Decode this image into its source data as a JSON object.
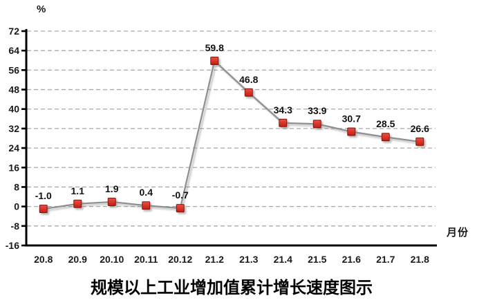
{
  "title": "规模以上工业增加值累计增长速度图示",
  "labels": {
    "y_unit": "%",
    "x_unit": "月份"
  },
  "chart_data": {
    "type": "line",
    "title": "规模以上工业增加值累计增长速度图示",
    "xlabel": "月份",
    "ylabel": "%",
    "categories": [
      "20.8",
      "20.9",
      "20.10",
      "20.11",
      "20.12",
      "21.2",
      "21.3",
      "21.4",
      "21.5",
      "21.6",
      "21.7",
      "21.8"
    ],
    "values": [
      -1.0,
      1.1,
      1.9,
      0.4,
      -0.7,
      59.8,
      46.8,
      34.3,
      33.9,
      30.7,
      28.5,
      26.6
    ],
    "point_labels": [
      "-1.0",
      "1.1",
      "1.9",
      "0.4",
      "-0.7",
      "59.8",
      "46.8",
      "34.3",
      "33.9",
      "30.7",
      "28.5",
      "26.6"
    ],
    "ylim": [
      -16,
      72
    ],
    "y_ticks": [
      -16,
      -8,
      0,
      8,
      16,
      24,
      32,
      40,
      48,
      56,
      64,
      72
    ],
    "grid": "horizontal-dashed",
    "legend": "none",
    "colors": {
      "line": "#8f8f8f",
      "marker_fill_top": "#ee4f43",
      "marker_fill_bottom": "#c41e14",
      "marker_border": "#7e1410",
      "gridline": "#a8a8a8",
      "axis": "#000000",
      "shadow": "#808080"
    }
  }
}
